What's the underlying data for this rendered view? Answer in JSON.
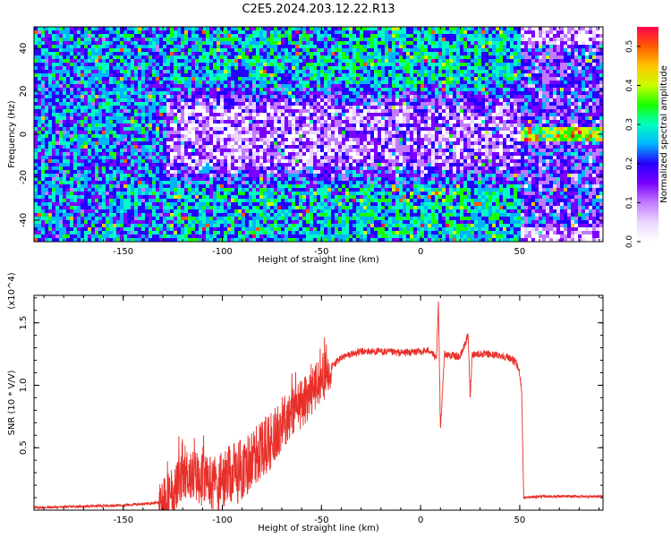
{
  "title": "C2E5.2024.203.12.22.R13",
  "chart_data": [
    {
      "type": "heatmap",
      "xlabel": "Height of straight line (km)",
      "ylabel": "Frequency (Hz)",
      "xlim": [
        -195,
        92
      ],
      "ylim": [
        -50,
        50
      ],
      "xticks": [
        -150,
        -100,
        -50,
        0,
        50
      ],
      "yticks": [
        -40,
        -20,
        0,
        20,
        40
      ],
      "colorbar": {
        "label": "Normalized spectral amplitude",
        "range": [
          0.0,
          0.55
        ],
        "ticks": [
          0.0,
          0.1,
          0.2,
          0.3,
          0.4,
          0.5
        ],
        "colors": [
          "#ffffff",
          "#e9d6ff",
          "#c27bff",
          "#7a00ff",
          "#2600ff",
          "#00b4ff",
          "#00ffc2",
          "#18ff00",
          "#c8ff00",
          "#ffc400",
          "#ff5a00",
          "#ff0050"
        ]
      },
      "description_regions": [
        {
          "x": [
            -195,
            -130
          ],
          "level": "moderate"
        },
        {
          "x": [
            -130,
            50
          ],
          "level": "low-center-high-edges"
        },
        {
          "x": [
            50,
            92
          ],
          "level": "tone-at-0Hz"
        }
      ],
      "bright_line": {
        "x_range": [
          50,
          92
        ],
        "frequency": 1
      }
    },
    {
      "type": "line",
      "xlabel": "Height of straight line (km)",
      "ylabel": "SNR (10 * V/V)",
      "yscale_label": "(x10^4)",
      "xlim": [
        -195,
        92
      ],
      "ylim": [
        0,
        1.72
      ],
      "xticks": [
        -150,
        -100,
        -50,
        0,
        50
      ],
      "yticks": [
        0.5,
        1.0,
        1.5
      ],
      "series": [
        {
          "color": "#e8302a",
          "x": [
            -195,
            -170,
            -150,
            -140,
            -132,
            -125,
            -118,
            -110,
            -102,
            -95,
            -88,
            -80,
            -75,
            -70,
            -65,
            -60,
            -55,
            -50,
            -45,
            -40,
            -35,
            -30,
            -20,
            -10,
            0,
            5,
            8,
            9,
            10,
            12,
            15,
            20,
            24,
            25,
            26,
            30,
            40,
            45,
            48,
            50,
            51,
            52,
            60,
            70,
            80,
            92
          ],
          "y": [
            0.02,
            0.03,
            0.04,
            0.05,
            0.06,
            0.15,
            0.3,
            0.25,
            0.22,
            0.28,
            0.35,
            0.5,
            0.55,
            0.7,
            0.8,
            0.85,
            0.95,
            1.05,
            1.15,
            1.22,
            1.25,
            1.27,
            1.27,
            1.26,
            1.27,
            1.28,
            1.2,
            1.65,
            0.65,
            1.25,
            1.24,
            1.23,
            1.4,
            0.9,
            1.25,
            1.25,
            1.24,
            1.22,
            1.18,
            1.1,
            0.95,
            0.1,
            0.11,
            0.11,
            0.11,
            0.11
          ]
        }
      ]
    }
  ]
}
